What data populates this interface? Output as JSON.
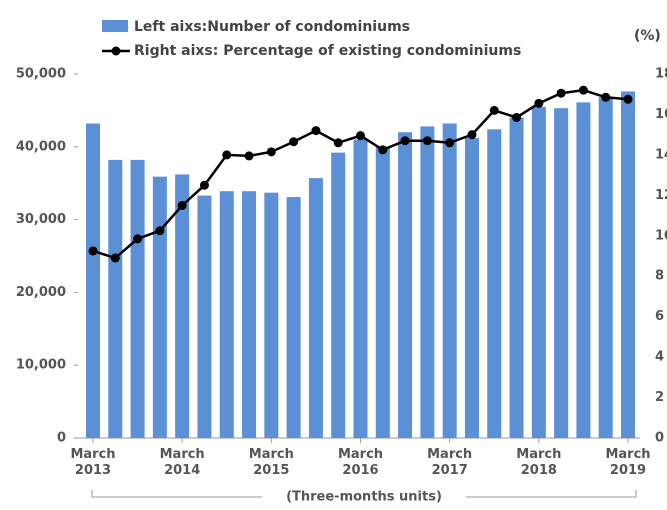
{
  "chart_data": {
    "type": "bar_line",
    "legend": "top",
    "x_label": "(Three-months units)",
    "y2_label": "(%)",
    "categories": [
      "March 2013",
      null,
      null,
      null,
      "March 2014",
      null,
      null,
      null,
      "March 2015",
      null,
      null,
      null,
      "March 2016",
      null,
      null,
      null,
      "March 2017",
      null,
      null,
      null,
      "March 2018",
      null,
      null,
      null,
      "March 2019"
    ],
    "series": [
      {
        "name": "Left aixs:Number of condominiums",
        "type": "bar",
        "color": "#5b8fd6",
        "values": [
          43200,
          38200,
          38200,
          35900,
          36200,
          33300,
          33900,
          33900,
          33700,
          33100,
          35700,
          39200,
          41000,
          40000,
          42000,
          42800,
          43200,
          41200,
          42400,
          44000,
          45500,
          45300,
          46100,
          46800,
          47600
        ]
      },
      {
        "name": "Right aixs: Percentage of existing condominiums",
        "type": "line",
        "axis": "y2",
        "color": "#000000",
        "values": [
          9.25,
          8.9,
          9.85,
          10.25,
          11.5,
          12.5,
          14.0,
          13.95,
          14.15,
          14.65,
          15.2,
          14.6,
          14.95,
          14.25,
          14.7,
          14.7,
          14.6,
          15.0,
          16.2,
          15.85,
          16.55,
          17.05,
          17.2,
          16.85,
          16.75
        ]
      }
    ],
    "ylim": [
      0,
      50000
    ],
    "yticks": [
      0,
      {
        "value": 10000,
        "label": "10,000"
      },
      {
        "value": 20000,
        "label": "20,000"
      },
      {
        "value": 30000,
        "label": "30,000"
      },
      {
        "value": 40000,
        "label": "40,000"
      },
      {
        "value": 50000,
        "label": "50,000"
      }
    ],
    "y2lim": [
      0,
      18
    ],
    "y2ticks": [
      0,
      2,
      4,
      6,
      8,
      10,
      12,
      14,
      16,
      18
    ]
  }
}
